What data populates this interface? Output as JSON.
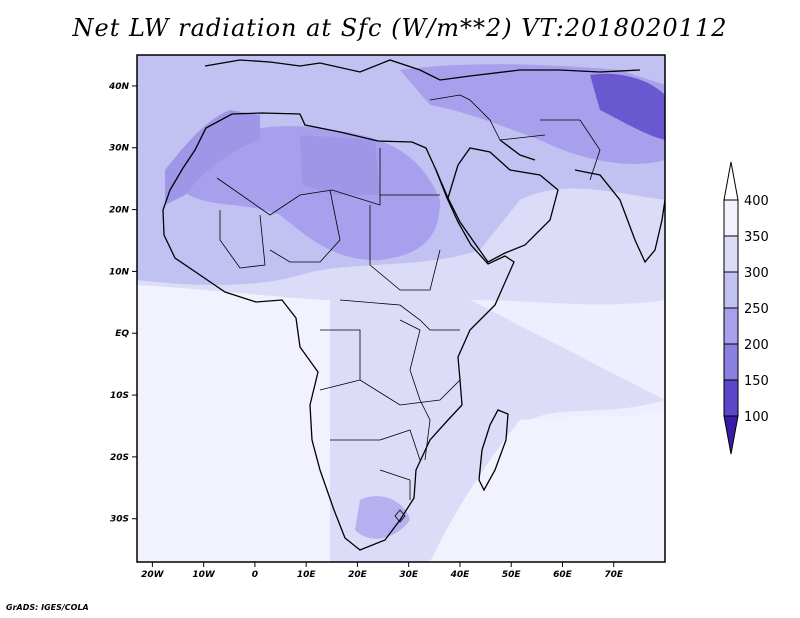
{
  "title": "Net LW radiation at Sfc (W/m**2) VT:2018020112",
  "footer": "GrADS: IGES/COLA",
  "map": {
    "lon_range": [
      -23,
      80
    ],
    "lat_range": [
      -37,
      45
    ],
    "lon_ticks": [
      {
        "value": -20,
        "label": "20W"
      },
      {
        "value": -10,
        "label": "10W"
      },
      {
        "value": 0,
        "label": "0"
      },
      {
        "value": 10,
        "label": "10E"
      },
      {
        "value": 20,
        "label": "20E"
      },
      {
        "value": 30,
        "label": "30E"
      },
      {
        "value": 40,
        "label": "40E"
      },
      {
        "value": 50,
        "label": "50E"
      },
      {
        "value": 60,
        "label": "60E"
      },
      {
        "value": 70,
        "label": "70E"
      }
    ],
    "lat_ticks": [
      {
        "value": 40,
        "label": "40N"
      },
      {
        "value": 30,
        "label": "30N"
      },
      {
        "value": 20,
        "label": "20N"
      },
      {
        "value": 10,
        "label": "10N"
      },
      {
        "value": 0,
        "label": "EQ"
      },
      {
        "value": -10,
        "label": "10S"
      },
      {
        "value": -20,
        "label": "20S"
      },
      {
        "value": -30,
        "label": "30S"
      }
    ]
  },
  "colorbar": {
    "levels": [
      "400",
      "350",
      "300",
      "250",
      "200",
      "150",
      "100"
    ],
    "colors": [
      "#f2f2ff",
      "#dcdcf8",
      "#c2c2f2",
      "#a8a0ec",
      "#8a80e0",
      "#5a46c8",
      "#3a1aa8"
    ]
  }
}
